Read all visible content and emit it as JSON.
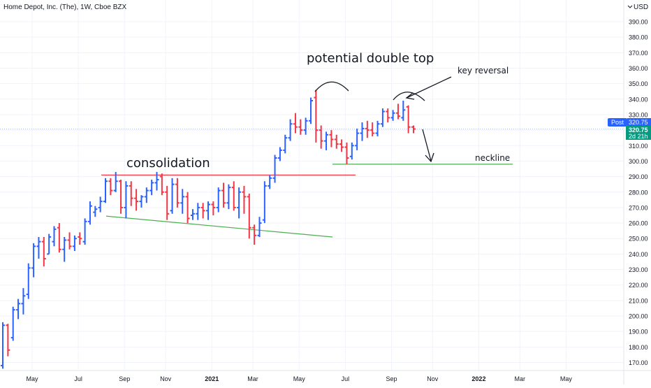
{
  "header": {
    "title": "Home Depot, Inc. (The), 1W, Cboe BZX"
  },
  "colors": {
    "up": "#2962ff",
    "down": "#f23645",
    "grid": "#f0f3fa",
    "axis_text": "#131722",
    "resistance_line": "#f23645",
    "support_line": "#4caf50",
    "last_price_bg": "#2962ff",
    "countdown_bg": "#089981"
  },
  "price_axis": {
    "currency_label": "USD",
    "currency_icon": "chevron-down-icon",
    "ticks": [
      170,
      180,
      190,
      200,
      210,
      220,
      230,
      240,
      250,
      260,
      270,
      280,
      290,
      300,
      310,
      320,
      330,
      340,
      350,
      360,
      370,
      380,
      390
    ],
    "post_label": "Post",
    "post_value": "320.75",
    "last_value": "320.75",
    "countdown": "2d 21h"
  },
  "time_axis": {
    "ticks": [
      {
        "label": "May",
        "bar": 0,
        "bold": false
      },
      {
        "label": "Jul",
        "bar": 9,
        "bold": false
      },
      {
        "label": "Sep",
        "bar": 18,
        "bold": false
      },
      {
        "label": "Nov",
        "bar": 26,
        "bold": false
      },
      {
        "label": "2021",
        "bar": 35,
        "bold": true
      },
      {
        "label": "Mar",
        "bar": 43,
        "bold": false
      },
      {
        "label": "May",
        "bar": 52,
        "bold": false
      },
      {
        "label": "Jul",
        "bar": 61,
        "bold": false
      },
      {
        "label": "Sep",
        "bar": 70,
        "bold": false
      },
      {
        "label": "Nov",
        "bar": 78,
        "bold": false
      },
      {
        "label": "2022",
        "bar": 87,
        "bold": true
      },
      {
        "label": "Mar",
        "bar": 95,
        "bold": false
      },
      {
        "label": "May",
        "bar": 104,
        "bold": false
      }
    ]
  },
  "annotations": {
    "consolidation": "consolidation",
    "double_top": "potential double top",
    "key_reversal": "key reversal",
    "neckline": "neckline"
  },
  "chart_data": {
    "type": "ohlc",
    "title": "Home Depot, Inc. (The), 1W, Cboe BZX",
    "interval": "1W",
    "ylim": [
      165,
      400
    ],
    "price_levels": {
      "resistance": 291,
      "neckline": 298,
      "last_price": 320.75
    },
    "trendlines": {
      "consolidation_support": {
        "from_bar": 18,
        "from_price": 264.5,
        "to_bar": 58,
        "to_price": 251
      },
      "consolidation_resistance": {
        "from_bar": 17,
        "from_price": 291,
        "to_bar": 63,
        "to_price": 291
      },
      "neckline": {
        "from_bar": 58,
        "from_price": 298,
        "to_bar": 90,
        "to_price": 298
      }
    },
    "bars": [
      {
        "o": 168,
        "h": 196,
        "l": 166,
        "c": 194
      },
      {
        "o": 194,
        "h": 195,
        "l": 174,
        "c": 178
      },
      {
        "o": 186,
        "h": 206,
        "l": 184,
        "c": 204
      },
      {
        "o": 204,
        "h": 211,
        "l": 198,
        "c": 208
      },
      {
        "o": 208,
        "h": 218,
        "l": 201,
        "c": 213
      },
      {
        "o": 214,
        "h": 234,
        "l": 211,
        "c": 231
      },
      {
        "o": 231,
        "h": 247,
        "l": 225,
        "c": 245
      },
      {
        "o": 245,
        "h": 251,
        "l": 237,
        "c": 248
      },
      {
        "o": 248,
        "h": 251,
        "l": 232,
        "c": 237
      },
      {
        "o": 240,
        "h": 253,
        "l": 240,
        "c": 251
      },
      {
        "o": 248,
        "h": 258,
        "l": 245,
        "c": 256
      },
      {
        "o": 257,
        "h": 260,
        "l": 241,
        "c": 243
      },
      {
        "o": 243,
        "h": 251,
        "l": 235,
        "c": 249
      },
      {
        "o": 249,
        "h": 254,
        "l": 243,
        "c": 245
      },
      {
        "o": 245,
        "h": 252,
        "l": 242,
        "c": 250
      },
      {
        "o": 251,
        "h": 254,
        "l": 246,
        "c": 250
      },
      {
        "o": 248,
        "h": 263,
        "l": 246,
        "c": 261
      },
      {
        "o": 261,
        "h": 274,
        "l": 259,
        "c": 271
      },
      {
        "o": 267,
        "h": 271,
        "l": 264,
        "c": 269
      },
      {
        "o": 270,
        "h": 277,
        "l": 267,
        "c": 274
      },
      {
        "o": 274,
        "h": 289,
        "l": 273,
        "c": 287
      },
      {
        "o": 287,
        "h": 289,
        "l": 278,
        "c": 281
      },
      {
        "o": 281,
        "h": 293,
        "l": 280,
        "c": 287
      },
      {
        "o": 287,
        "h": 288,
        "l": 266,
        "c": 270
      },
      {
        "o": 270,
        "h": 287,
        "l": 263,
        "c": 284
      },
      {
        "o": 284,
        "h": 287,
        "l": 271,
        "c": 276
      },
      {
        "o": 276,
        "h": 282,
        "l": 268,
        "c": 274
      },
      {
        "o": 274,
        "h": 278,
        "l": 270,
        "c": 277
      },
      {
        "o": 277,
        "h": 283,
        "l": 273,
        "c": 281
      },
      {
        "o": 281,
        "h": 288,
        "l": 278,
        "c": 286
      },
      {
        "o": 286,
        "h": 293,
        "l": 281,
        "c": 288
      },
      {
        "o": 290,
        "h": 292,
        "l": 278,
        "c": 280
      },
      {
        "o": 280,
        "h": 284,
        "l": 262,
        "c": 266
      },
      {
        "o": 268,
        "h": 289,
        "l": 266,
        "c": 285
      },
      {
        "o": 285,
        "h": 289,
        "l": 270,
        "c": 273
      },
      {
        "o": 273,
        "h": 282,
        "l": 266,
        "c": 277
      },
      {
        "o": 277,
        "h": 280,
        "l": 260,
        "c": 263
      },
      {
        "o": 265,
        "h": 269,
        "l": 262,
        "c": 266
      },
      {
        "o": 266,
        "h": 273,
        "l": 262,
        "c": 270
      },
      {
        "o": 270,
        "h": 273,
        "l": 263,
        "c": 268
      },
      {
        "o": 268,
        "h": 274,
        "l": 262,
        "c": 272
      },
      {
        "o": 272,
        "h": 274,
        "l": 265,
        "c": 270
      },
      {
        "o": 270,
        "h": 283,
        "l": 267,
        "c": 281
      },
      {
        "o": 281,
        "h": 286,
        "l": 270,
        "c": 273
      },
      {
        "o": 273,
        "h": 285,
        "l": 269,
        "c": 283
      },
      {
        "o": 283,
        "h": 287,
        "l": 268,
        "c": 270
      },
      {
        "o": 270,
        "h": 283,
        "l": 263,
        "c": 280
      },
      {
        "o": 280,
        "h": 284,
        "l": 266,
        "c": 277
      },
      {
        "o": 277,
        "h": 279,
        "l": 250,
        "c": 257
      },
      {
        "o": 257,
        "h": 259,
        "l": 246,
        "c": 252
      },
      {
        "o": 252,
        "h": 264,
        "l": 251,
        "c": 260
      },
      {
        "o": 262,
        "h": 287,
        "l": 260,
        "c": 284
      },
      {
        "o": 284,
        "h": 291,
        "l": 282,
        "c": 289
      },
      {
        "o": 289,
        "h": 304,
        "l": 286,
        "c": 302
      },
      {
        "o": 302,
        "h": 309,
        "l": 300,
        "c": 307
      },
      {
        "o": 307,
        "h": 317,
        "l": 305,
        "c": 315
      },
      {
        "o": 315,
        "h": 327,
        "l": 313,
        "c": 324
      },
      {
        "o": 324,
        "h": 331,
        "l": 318,
        "c": 322
      },
      {
        "o": 322,
        "h": 327,
        "l": 317,
        "c": 320
      },
      {
        "o": 320,
        "h": 328,
        "l": 317,
        "c": 326
      },
      {
        "o": 326,
        "h": 341,
        "l": 324,
        "c": 339
      },
      {
        "o": 341,
        "h": 346,
        "l": 312,
        "c": 320
      },
      {
        "o": 320,
        "h": 323,
        "l": 308,
        "c": 313
      },
      {
        "o": 313,
        "h": 319,
        "l": 307,
        "c": 317
      },
      {
        "o": 317,
        "h": 320,
        "l": 309,
        "c": 314
      },
      {
        "o": 314,
        "h": 317,
        "l": 308,
        "c": 311
      },
      {
        "o": 311,
        "h": 314,
        "l": 306,
        "c": 309
      },
      {
        "o": 309,
        "h": 312,
        "l": 298,
        "c": 302
      },
      {
        "o": 303,
        "h": 312,
        "l": 301,
        "c": 310
      },
      {
        "o": 310,
        "h": 321,
        "l": 307,
        "c": 318
      },
      {
        "o": 318,
        "h": 325,
        "l": 313,
        "c": 321
      },
      {
        "o": 321,
        "h": 326,
        "l": 315,
        "c": 320
      },
      {
        "o": 320,
        "h": 325,
        "l": 316,
        "c": 318
      },
      {
        "o": 318,
        "h": 326,
        "l": 316,
        "c": 324
      },
      {
        "o": 324,
        "h": 334,
        "l": 322,
        "c": 332
      },
      {
        "o": 332,
        "h": 334,
        "l": 325,
        "c": 328
      },
      {
        "o": 328,
        "h": 333,
        "l": 326,
        "c": 331
      },
      {
        "o": 331,
        "h": 337,
        "l": 327,
        "c": 329
      },
      {
        "o": 328,
        "h": 339,
        "l": 326,
        "c": 333
      },
      {
        "o": 335,
        "h": 336,
        "l": 318,
        "c": 322
      }
    ],
    "last_bar": {
      "o": 322,
      "h": 323,
      "l": 318,
      "c": 320.75
    }
  }
}
